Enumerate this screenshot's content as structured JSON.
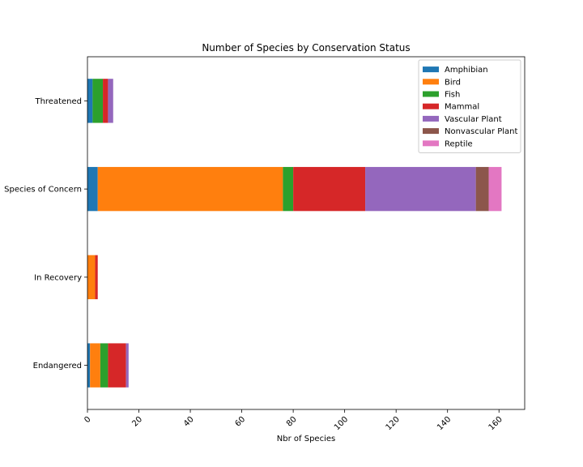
{
  "chart_data": {
    "type": "bar",
    "orientation": "horizontal",
    "stacked": true,
    "title": "Number of Species by Conservation Status",
    "xlabel": "Nbr of Species",
    "ylabel": "",
    "categories": [
      "Endangered",
      "In Recovery",
      "Species of Concern",
      "Threatened"
    ],
    "xlim": [
      0,
      170
    ],
    "xticks": [
      0,
      20,
      40,
      60,
      80,
      100,
      120,
      140,
      160
    ],
    "xtick_rotation": 45,
    "legend_position": "top-right",
    "grid": false,
    "series": [
      {
        "name": "Amphibian",
        "color": "#1f77b4",
        "values": [
          1,
          0,
          4,
          2
        ]
      },
      {
        "name": "Bird",
        "color": "#ff7f0e",
        "values": [
          4,
          3,
          72,
          0
        ]
      },
      {
        "name": "Fish",
        "color": "#2ca02c",
        "values": [
          3,
          0,
          4,
          4
        ]
      },
      {
        "name": "Mammal",
        "color": "#d62728",
        "values": [
          7,
          1,
          28,
          2
        ]
      },
      {
        "name": "Vascular Plant",
        "color": "#9467bd",
        "values": [
          1,
          0,
          43,
          2
        ]
      },
      {
        "name": "Nonvascular Plant",
        "color": "#8c564b",
        "values": [
          0,
          0,
          5,
          0
        ]
      },
      {
        "name": "Reptile",
        "color": "#e377c2",
        "values": [
          0,
          0,
          5,
          0
        ]
      }
    ]
  }
}
